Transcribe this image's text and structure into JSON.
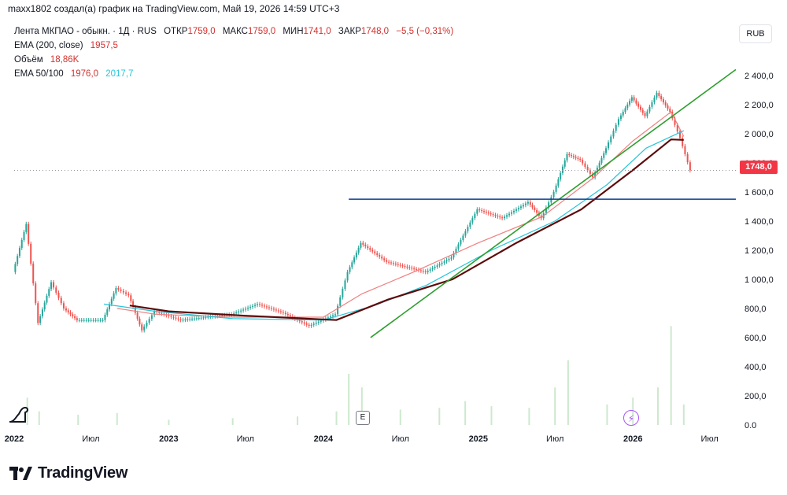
{
  "header": {
    "caption": "maxx1802 создал(а) график на TradingView.com, Май 19, 2026 14:59 UTC+3"
  },
  "legend": {
    "symbol": "Лента МКПАО - обыкн. · 1Д · RUS",
    "open_label": "ОТКР",
    "open_value": "1759,0",
    "high_label": "МАКС",
    "high_value": "1759,0",
    "low_label": "МИН",
    "low_value": "1741,0",
    "close_label": "ЗАКР",
    "close_value": "1748,0",
    "change": "−5,5 (−0,31%)",
    "ema200_label": "EMA (200, close)",
    "ema200_value": "1957,5",
    "volume_label": "Объём",
    "volume_value": "18,86K",
    "ema50_100_label": "EMA 50/100",
    "ema50_value": "1976,0",
    "ema100_value": "2017,7"
  },
  "currency_button": "RUB",
  "last_price_tag": "1748,0",
  "earnings_badge": "E",
  "brand": "TradingView",
  "colors": {
    "up": "#26a69a",
    "down": "#ef5350",
    "ema50": "#f08080",
    "ema100": "#26c6da",
    "ema200": "#5d0a0a",
    "trend": "#2e9e2e",
    "support": "#0b3d91",
    "tag": "#f23645"
  },
  "chart_data": {
    "type": "candlestick",
    "x_ticks": [
      "2022",
      "Июл",
      "2023",
      "Июл",
      "2024",
      "Июл",
      "2025",
      "Июл",
      "2026",
      "Июл"
    ],
    "y_ticks": [
      "2 400,0",
      "2 200,0",
      "2 000,0",
      "1 800,0",
      "1 600,0",
      "1 400,0",
      "1 200,0",
      "1 000,0",
      "800,0",
      "600,0",
      "400,0",
      "200,0",
      "0.0"
    ],
    "ylim": [
      0,
      2480
    ],
    "x_range": [
      "2022-01",
      "2026-09"
    ],
    "last_price": 1748.0,
    "price_path": [
      {
        "date": "2022-01",
        "value": 1050
      },
      {
        "date": "2022-02",
        "value": 1380
      },
      {
        "date": "2022-03",
        "value": 700
      },
      {
        "date": "2022-04",
        "value": 980
      },
      {
        "date": "2022-05",
        "value": 800
      },
      {
        "date": "2022-06",
        "value": 720
      },
      {
        "date": "2022-08",
        "value": 720
      },
      {
        "date": "2022-09",
        "value": 940
      },
      {
        "date": "2022-10",
        "value": 890
      },
      {
        "date": "2022-11",
        "value": 650
      },
      {
        "date": "2022-12",
        "value": 780
      },
      {
        "date": "2023-02",
        "value": 720
      },
      {
        "date": "2023-04",
        "value": 740
      },
      {
        "date": "2023-06",
        "value": 760
      },
      {
        "date": "2023-08",
        "value": 830
      },
      {
        "date": "2023-10",
        "value": 770
      },
      {
        "date": "2023-12",
        "value": 680
      },
      {
        "date": "2024-02",
        "value": 760
      },
      {
        "date": "2024-03",
        "value": 1050
      },
      {
        "date": "2024-04",
        "value": 1250
      },
      {
        "date": "2024-06",
        "value": 1120
      },
      {
        "date": "2024-09",
        "value": 1050
      },
      {
        "date": "2024-11",
        "value": 1150
      },
      {
        "date": "2025-01",
        "value": 1480
      },
      {
        "date": "2025-03",
        "value": 1420
      },
      {
        "date": "2025-05",
        "value": 1530
      },
      {
        "date": "2025-06",
        "value": 1420
      },
      {
        "date": "2025-07",
        "value": 1600
      },
      {
        "date": "2025-08",
        "value": 1860
      },
      {
        "date": "2025-09",
        "value": 1820
      },
      {
        "date": "2025-10",
        "value": 1700
      },
      {
        "date": "2025-11",
        "value": 1900
      },
      {
        "date": "2025-12",
        "value": 2100
      },
      {
        "date": "2026-01",
        "value": 2250
      },
      {
        "date": "2026-02",
        "value": 2120
      },
      {
        "date": "2026-03",
        "value": 2280
      },
      {
        "date": "2026-04",
        "value": 2150
      },
      {
        "date": "2026-04-25",
        "value": 1970
      },
      {
        "date": "2026-05-19",
        "value": 1748
      }
    ],
    "series": [
      {
        "name": "EMA 50",
        "values": [
          [
            "2022-09",
            800
          ],
          [
            "2022-12",
            760
          ],
          [
            "2023-06",
            740
          ],
          [
            "2024-01",
            740
          ],
          [
            "2024-04",
            900
          ],
          [
            "2024-08",
            1050
          ],
          [
            "2025-01",
            1250
          ],
          [
            "2025-06",
            1430
          ],
          [
            "2025-10",
            1700
          ],
          [
            "2026-01",
            1950
          ],
          [
            "2026-04",
            2150
          ],
          [
            "2026-05",
            1980
          ]
        ]
      },
      {
        "name": "EMA 100",
        "values": [
          [
            "2022-08",
            830
          ],
          [
            "2022-12",
            780
          ],
          [
            "2023-06",
            730
          ],
          [
            "2024-01",
            720
          ],
          [
            "2024-05",
            820
          ],
          [
            "2024-09",
            960
          ],
          [
            "2025-02",
            1200
          ],
          [
            "2025-07",
            1400
          ],
          [
            "2025-11",
            1650
          ],
          [
            "2026-02",
            1900
          ],
          [
            "2026-05",
            2020
          ]
        ]
      },
      {
        "name": "EMA (200, close)",
        "values": [
          [
            "2022-10",
            820
          ],
          [
            "2023-01",
            780
          ],
          [
            "2023-07",
            750
          ],
          [
            "2024-02",
            720
          ],
          [
            "2024-06",
            860
          ],
          [
            "2024-11",
            1000
          ],
          [
            "2025-04",
            1250
          ],
          [
            "2025-09",
            1480
          ],
          [
            "2026-01",
            1750
          ],
          [
            "2026-04",
            1960
          ],
          [
            "2026-05",
            1957
          ]
        ]
      }
    ],
    "trendline": {
      "from": [
        "2024-01",
        600
      ],
      "to": [
        "2026-09",
        2440
      ]
    },
    "support_line": {
      "value": 1550,
      "from": "2024-03",
      "to": "2026-09"
    },
    "volume_bars": [
      [
        "2022-02",
        80
      ],
      [
        "2022-03",
        40
      ],
      [
        "2022-06",
        30
      ],
      [
        "2022-09",
        35
      ],
      [
        "2023-01",
        15
      ],
      [
        "2023-06",
        20
      ],
      [
        "2023-11",
        25
      ],
      [
        "2024-02",
        40
      ],
      [
        "2024-03",
        150
      ],
      [
        "2024-04",
        110
      ],
      [
        "2024-07",
        45
      ],
      [
        "2024-10",
        50
      ],
      [
        "2024-12",
        70
      ],
      [
        "2025-02",
        55
      ],
      [
        "2025-05",
        50
      ],
      [
        "2025-07",
        110
      ],
      [
        "2025-08",
        190
      ],
      [
        "2025-11",
        60
      ],
      [
        "2026-01",
        80
      ],
      [
        "2026-03",
        110
      ],
      [
        "2026-04",
        290
      ],
      [
        "2026-05",
        60
      ]
    ]
  }
}
